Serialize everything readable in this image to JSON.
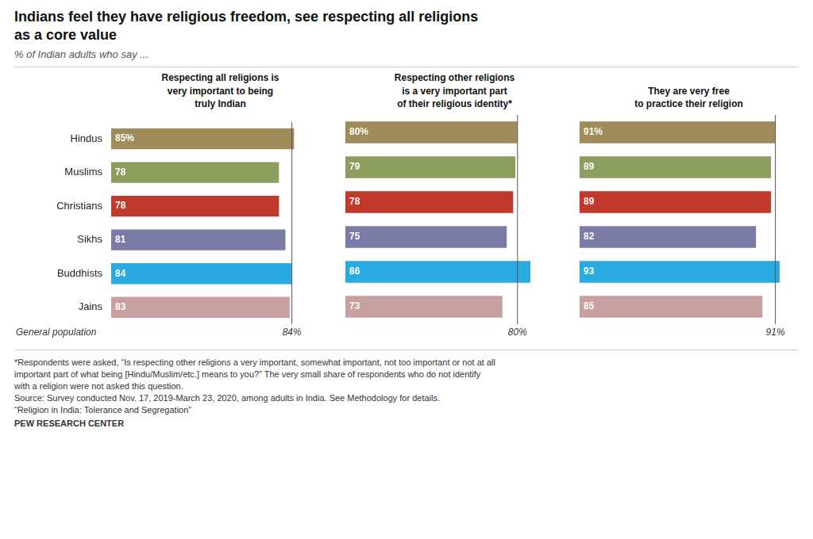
{
  "title": "Indians feel they have religious freedom, see respecting all religions\nas a core value",
  "subtitle": "% of Indian adults who say ...",
  "annotations": [
    "*Respondents were asked, “Is respecting other religions a very important, somewhat important, not too important or not at all",
    "important part of what being [Hindu/Muslim/etc.] means to you?” The very small share of respondents who do not identify",
    "with a religion were not asked this question.",
    "Source: Survey conducted Nov. 17, 2019-March 23, 2020, among adults in India. See Methodology for details.",
    "“Religion in India: Tolerance and Segregation”",
    "PEW RESEARCH CENTER"
  ],
  "chart_data": [
    {
      "type": "bar",
      "orientation": "horizontal",
      "title": "Respecting all religions is\nvery important to being\ntruly Indian",
      "categories": [
        "Hindus",
        "Muslims",
        "Christians",
        "Sikhs",
        "Buddhists",
        "Jains"
      ],
      "values": [
        85,
        78,
        78,
        81,
        84,
        83
      ],
      "value_labels": [
        "85%",
        "78",
        "78",
        "81",
        "84",
        "83"
      ],
      "colors": [
        "#a08c5b",
        "#8c9e5e",
        "#c0392b",
        "#7b7ba8",
        "#29abe2",
        "#c9a0a0"
      ],
      "general_population": {
        "value": 84,
        "label": "84%"
      },
      "annotations": [
        "General population"
      ],
      "xlim": [
        0,
        100
      ],
      "grid": false,
      "data_labels": true,
      "tick_labels": "y"
    },
    {
      "type": "bar",
      "orientation": "horizontal",
      "title": "Respecting other religions\nis a very important part\nof their religious identity*",
      "categories": [
        "Hindus",
        "Muslims",
        "Christians",
        "Sikhs",
        "Buddhists",
        "Jains"
      ],
      "values": [
        80,
        79,
        78,
        75,
        86,
        73
      ],
      "value_labels": [
        "80%",
        "79",
        "78",
        "75",
        "86",
        "73"
      ],
      "colors": [
        "#a08c5b",
        "#8c9e5e",
        "#c0392b",
        "#7b7ba8",
        "#29abe2",
        "#c9a0a0"
      ],
      "general_population": {
        "value": 80,
        "label": "80%"
      },
      "xlim": [
        0,
        100
      ],
      "grid": false,
      "data_labels": true,
      "tick_labels": false
    },
    {
      "type": "bar",
      "orientation": "horizontal",
      "title": "They are very free\nto practice their religion",
      "categories": [
        "Hindus",
        "Muslims",
        "Christians",
        "Sikhs",
        "Buddhists",
        "Jains"
      ],
      "values": [
        91,
        89,
        89,
        82,
        93,
        85
      ],
      "value_labels": [
        "91%",
        "89",
        "89",
        "82",
        "93",
        "85"
      ],
      "colors": [
        "#a08c5b",
        "#8c9e5e",
        "#c0392b",
        "#7b7ba8",
        "#29abe2",
        "#c9a0a0"
      ],
      "general_population": {
        "value": 91,
        "label": "91%"
      },
      "xlim": [
        0,
        100
      ],
      "grid": false,
      "data_labels": true,
      "tick_labels": false
    }
  ]
}
